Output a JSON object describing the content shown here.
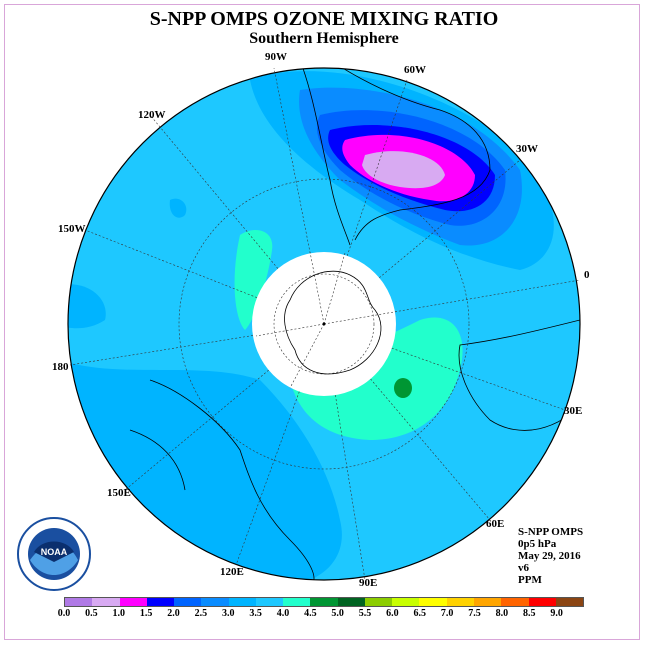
{
  "title": "S-NPP OMPS OZONE MIXING RATIO",
  "subtitle": "Southern Hemisphere",
  "longitude_labels": [
    {
      "id": "90w",
      "text": "90W"
    },
    {
      "id": "60w",
      "text": "60W"
    },
    {
      "id": "30w",
      "text": "30W"
    },
    {
      "id": "0",
      "text": "0"
    },
    {
      "id": "30e",
      "text": "30E"
    },
    {
      "id": "60e",
      "text": "60E"
    },
    {
      "id": "90e",
      "text": "90E"
    },
    {
      "id": "120e",
      "text": "120E"
    },
    {
      "id": "150e",
      "text": "150E"
    },
    {
      "id": "180",
      "text": "180"
    },
    {
      "id": "150w",
      "text": "150W"
    },
    {
      "id": "120w",
      "text": "120W"
    }
  ],
  "info": {
    "instrument": "S-NPP OMPS",
    "level": "0p5 hPa",
    "date": "May 29, 2016",
    "version": "v6",
    "units": "PPM"
  },
  "logo_text": "NOAA",
  "colorbar": {
    "colors": [
      "#b07ae6",
      "#d8aaf2",
      "#ff00ff",
      "#0000ff",
      "#0064ff",
      "#0a8cff",
      "#00b4ff",
      "#1ec8ff",
      "#22ffcc",
      "#009633",
      "#006421",
      "#8ccd00",
      "#c8ff00",
      "#ffff00",
      "#ffd200",
      "#ffa500",
      "#ff6400",
      "#ff0000",
      "#8b4513"
    ],
    "labels": [
      "0.0",
      "0.5",
      "1.0",
      "1.5",
      "2.0",
      "2.5",
      "3.0",
      "3.5",
      "4.0",
      "4.5",
      "5.0",
      "5.5",
      "6.0",
      "6.5",
      "7.0",
      "7.5",
      "8.0",
      "8.5",
      "9.0"
    ]
  }
}
